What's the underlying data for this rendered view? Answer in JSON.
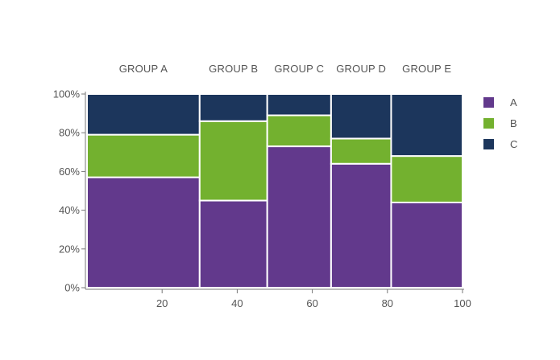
{
  "chart_data": {
    "type": "bar",
    "subtype": "marimekko",
    "x_edges": [
      0,
      30,
      48,
      65,
      81,
      100
    ],
    "groups": [
      "GROUP A",
      "GROUP B",
      "GROUP C",
      "GROUP D",
      "GROUP E"
    ],
    "series": [
      {
        "name": "A",
        "color": "#62398c",
        "values": [
          57,
          45,
          73,
          64,
          44
        ]
      },
      {
        "name": "B",
        "color": "#73b12f",
        "values": [
          22,
          41,
          16,
          13,
          24
        ]
      },
      {
        "name": "C",
        "color": "#1c365c",
        "values": [
          21,
          14,
          11,
          23,
          32
        ]
      }
    ],
    "xticks": [
      20,
      40,
      60,
      80,
      100
    ],
    "yticks": [
      0,
      20,
      40,
      60,
      80,
      100
    ],
    "ytick_labels": [
      "0%",
      "20%",
      "40%",
      "60%",
      "80%",
      "100%"
    ],
    "xlim": [
      0,
      100
    ],
    "ylim": [
      0,
      100
    ],
    "legend_position": "right",
    "grid": false,
    "title": "",
    "xlabel": "",
    "ylabel": ""
  }
}
